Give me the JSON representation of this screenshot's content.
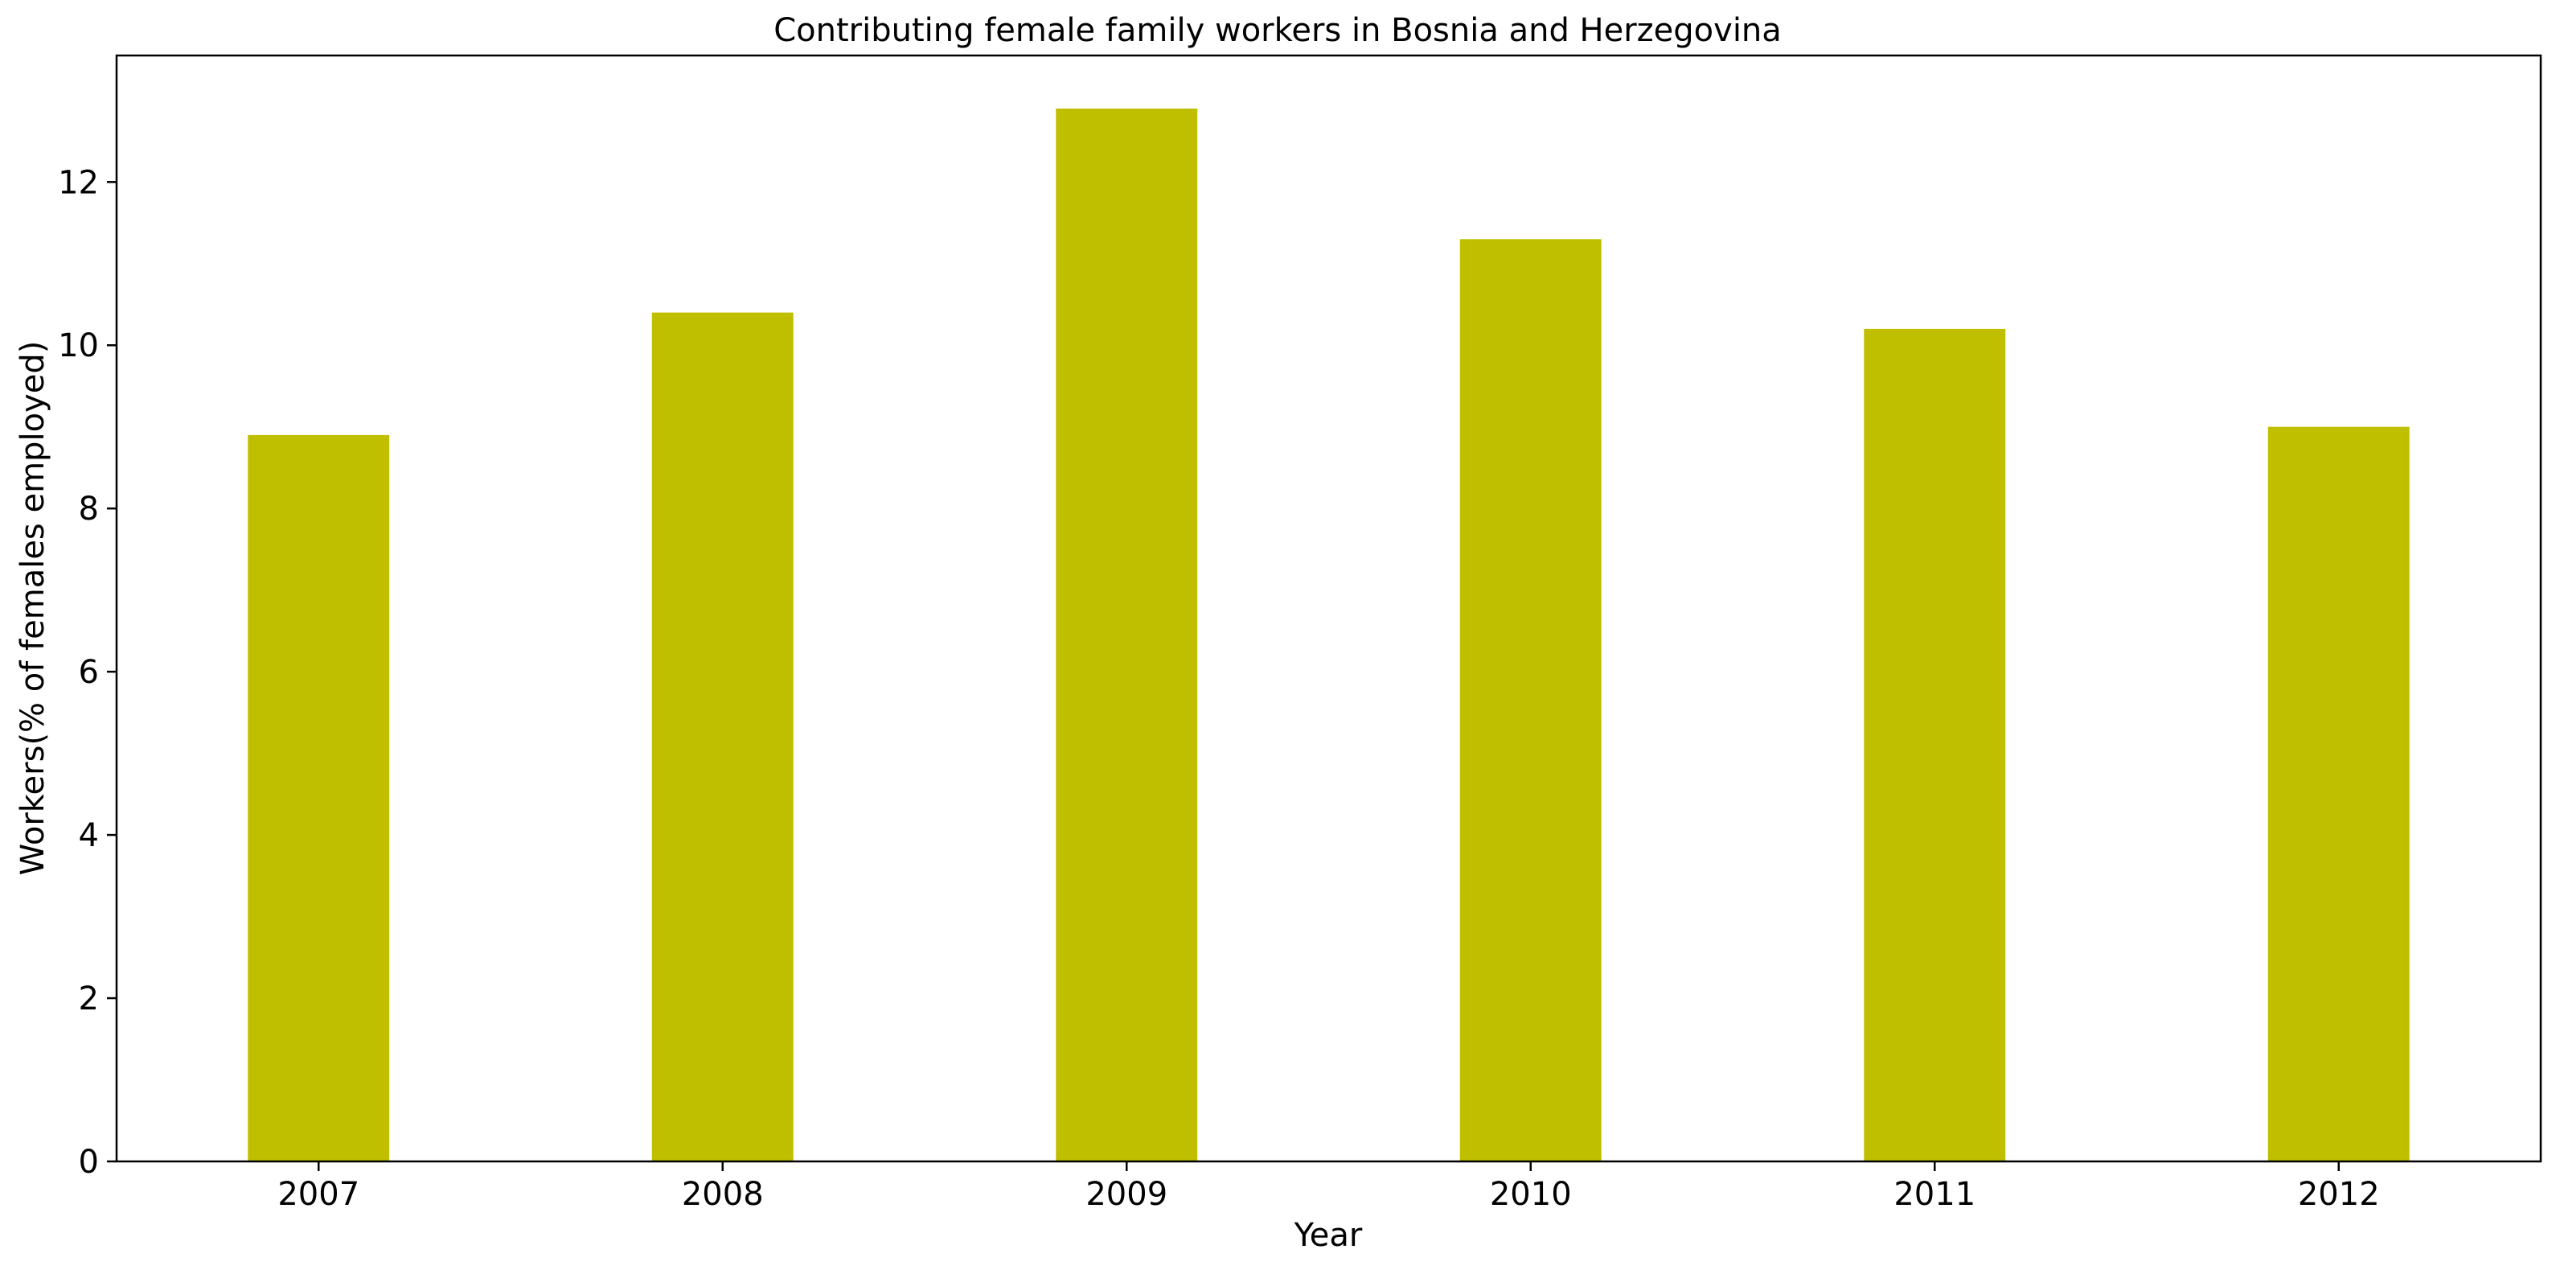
{
  "chart_data": {
    "type": "bar",
    "title": "Contributing female family workers in Bosnia and Herzegovina",
    "xlabel": "Year",
    "ylabel": "Workers(% of females employed)",
    "categories": [
      "2007",
      "2008",
      "2009",
      "2010",
      "2011",
      "2012"
    ],
    "values": [
      8.9,
      10.4,
      12.9,
      11.3,
      10.2,
      9.0
    ],
    "ylim": [
      0,
      13.55
    ],
    "yticks": [
      0,
      2,
      4,
      6,
      8,
      10,
      12
    ],
    "bar_color": "#bfbf00",
    "grid": false,
    "legend": "none"
  }
}
